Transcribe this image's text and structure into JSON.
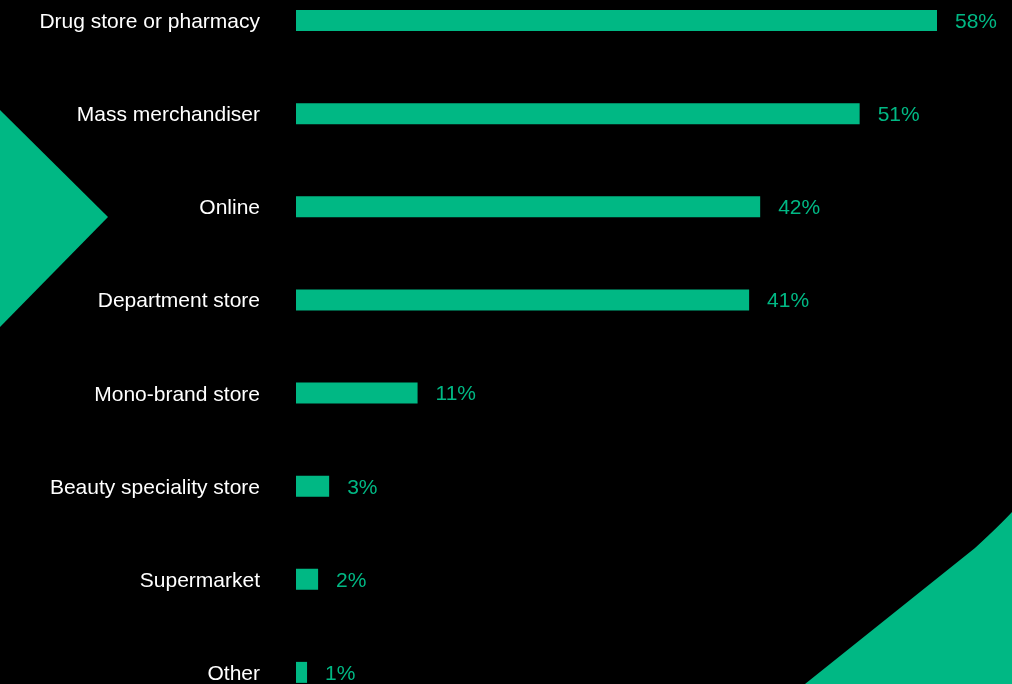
{
  "chart_data": {
    "type": "bar",
    "orientation": "horizontal",
    "categories": [
      "Drug store or pharmacy",
      "Mass merchandiser",
      "Online",
      "Department store",
      "Mono-brand store",
      "Beauty speciality store",
      "Supermarket",
      "Other"
    ],
    "values": [
      58,
      51,
      42,
      41,
      11,
      3,
      2,
      1
    ],
    "color": "#00b884",
    "value_labels": [
      "58%",
      "51%",
      "42%",
      "41%",
      "11%",
      "3%",
      "2%",
      "1%"
    ]
  }
}
